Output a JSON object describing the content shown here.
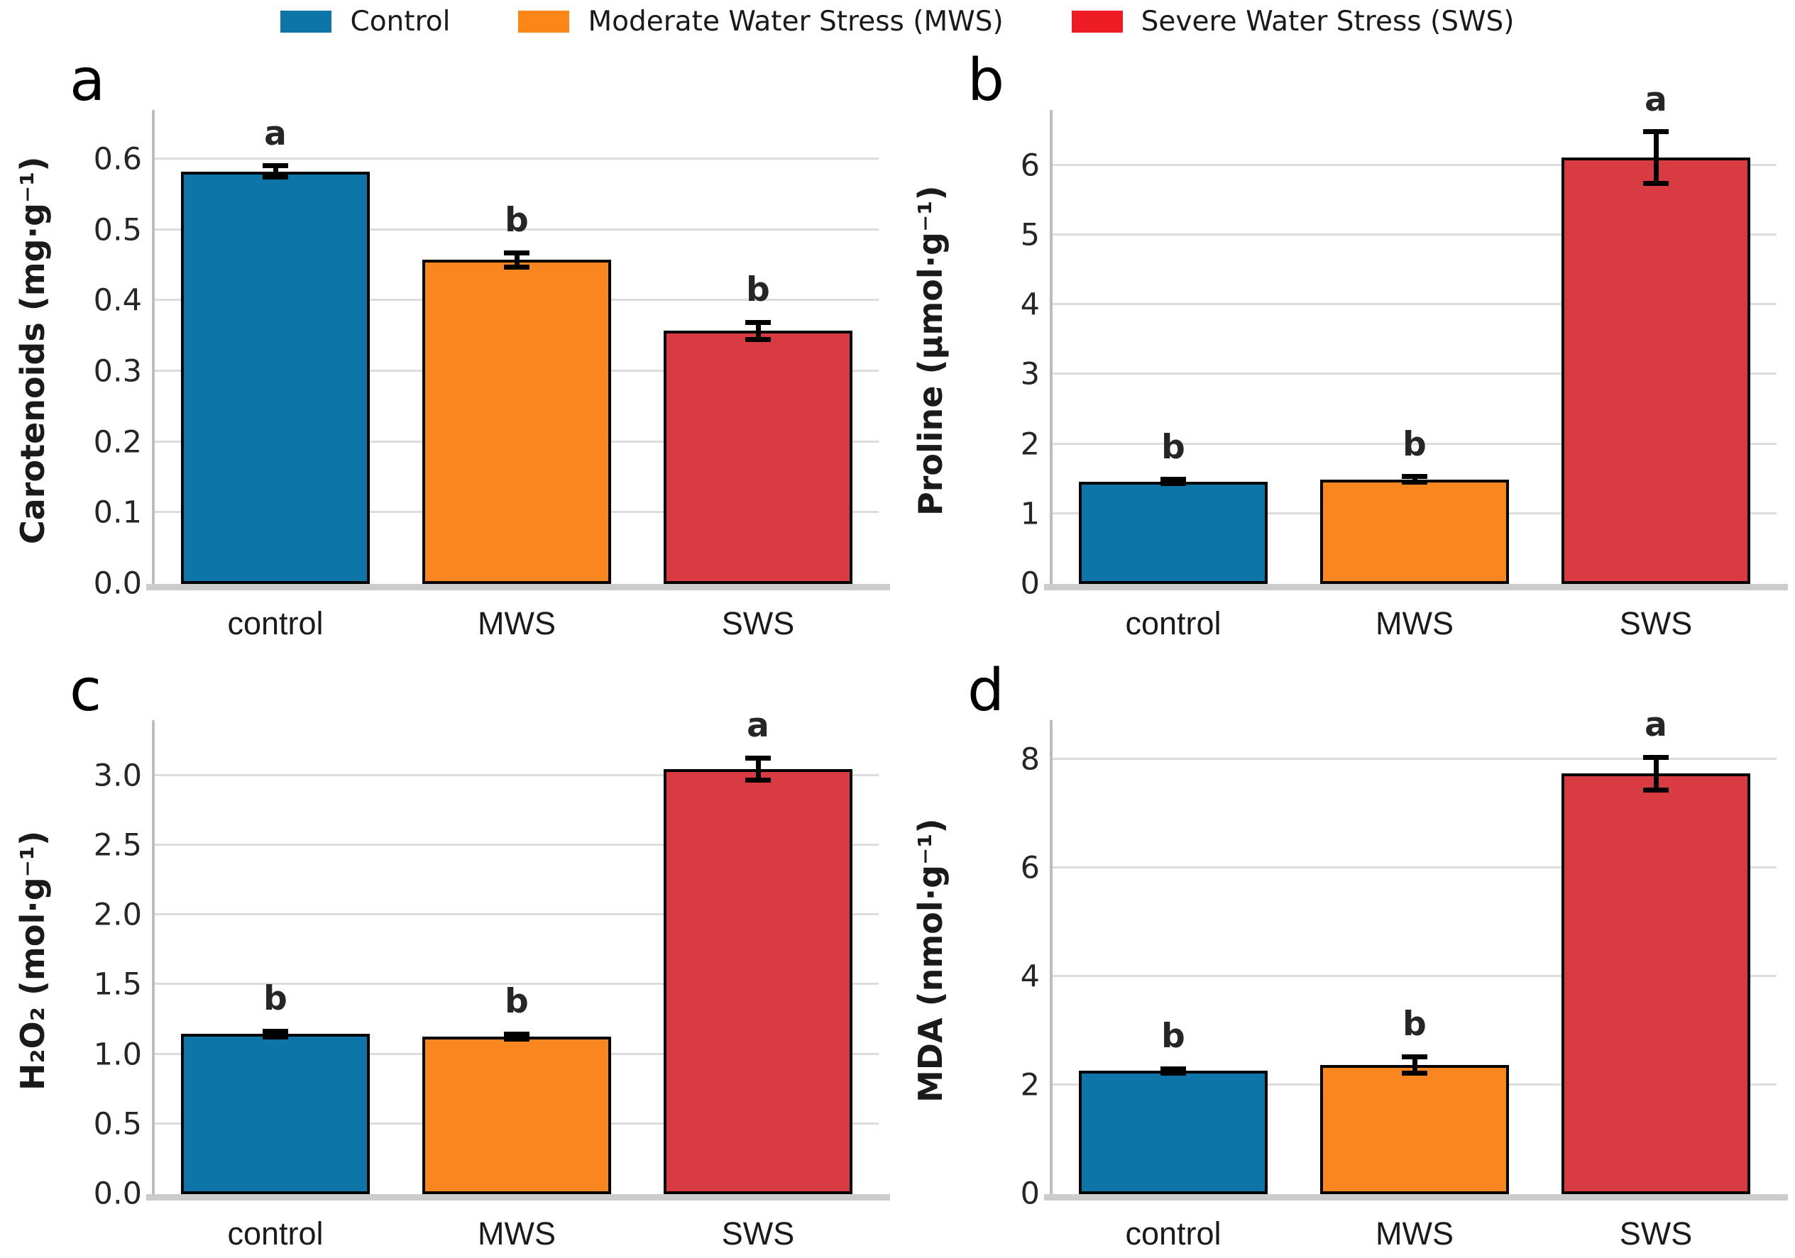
{
  "legend": {
    "items": [
      {
        "label": "Control",
        "color": "#0e75a8"
      },
      {
        "label": "Moderate Water Stress (MWS)",
        "color": "#fb8718"
      },
      {
        "label": "Severe Water Stress (SWS)",
        "color": "#ee1c25"
      }
    ]
  },
  "colors": {
    "bar_blue": "#0e75a8",
    "bar_orange": "#f9861f",
    "bar_red": "#d93b42",
    "bar_outline": "#000000",
    "gridline": "#dcdcdc",
    "spine": "#c6c6c6"
  },
  "chart_data": [
    {
      "type": "bar",
      "panel_letter": "a",
      "ylabel": "Carotenoids (mg·g⁻¹)",
      "categories": [
        "control",
        "MWS",
        "SWS"
      ],
      "values": [
        0.583,
        0.458,
        0.358
      ],
      "errors": [
        0.008,
        0.01,
        0.012
      ],
      "sig_letters": [
        "a",
        "b",
        "b"
      ],
      "bar_colors": [
        "#0e75a8",
        "#f9861f",
        "#d93b42"
      ],
      "ylim": [
        0,
        0.66
      ],
      "yticks": [
        0.0,
        0.1,
        0.2,
        0.3,
        0.4,
        0.5,
        0.6
      ],
      "ytick_labels": [
        "0.0",
        "0.1",
        "0.2",
        "0.3",
        "0.4",
        "0.5",
        "0.6"
      ],
      "grid": true,
      "legend_position": "figure-top-center"
    },
    {
      "type": "bar",
      "panel_letter": "b",
      "ylabel": "Proline (μmol·g⁻¹)",
      "categories": [
        "control",
        "MWS",
        "SWS"
      ],
      "values": [
        1.47,
        1.5,
        6.12
      ],
      "errors": [
        0.03,
        0.04,
        0.37
      ],
      "sig_letters": [
        "b",
        "b",
        "a"
      ],
      "bar_colors": [
        "#0e75a8",
        "#f9861f",
        "#d93b42"
      ],
      "ylim": [
        0,
        6.7
      ],
      "yticks": [
        0,
        1,
        2,
        3,
        4,
        5,
        6
      ],
      "ytick_labels": [
        "0",
        "1",
        "2",
        "3",
        "4",
        "5",
        "6"
      ],
      "grid": true,
      "legend_position": "figure-top-center"
    },
    {
      "type": "bar",
      "panel_letter": "c",
      "ylabel": "H₂O₂ (mol·g⁻¹)",
      "categories": [
        "control",
        "MWS",
        "SWS"
      ],
      "values": [
        1.15,
        1.13,
        3.05
      ],
      "errors": [
        0.02,
        0.02,
        0.08
      ],
      "sig_letters": [
        "b",
        "b",
        "a"
      ],
      "bar_colors": [
        "#0e75a8",
        "#f9861f",
        "#d93b42"
      ],
      "ylim": [
        0,
        3.35
      ],
      "yticks": [
        0.0,
        0.5,
        1.0,
        1.5,
        2.0,
        2.5,
        3.0
      ],
      "ytick_labels": [
        "0.0",
        "0.5",
        "1.0",
        "1.5",
        "2.0",
        "2.5",
        "3.0"
      ],
      "grid": true,
      "legend_position": "figure-top-center"
    },
    {
      "type": "bar",
      "panel_letter": "d",
      "ylabel": "MDA (nmol·g⁻¹)",
      "categories": [
        "control",
        "MWS",
        "SWS"
      ],
      "values": [
        2.27,
        2.38,
        7.75
      ],
      "errors": [
        0.04,
        0.15,
        0.3
      ],
      "sig_letters": [
        "b",
        "b",
        "a"
      ],
      "bar_colors": [
        "#0e75a8",
        "#f9861f",
        "#d93b42"
      ],
      "ylim": [
        0,
        8.6
      ],
      "yticks": [
        0,
        2,
        4,
        6,
        8
      ],
      "ytick_labels": [
        "0",
        "2",
        "4",
        "6",
        "8"
      ],
      "grid": true,
      "legend_position": "figure-top-center"
    }
  ]
}
